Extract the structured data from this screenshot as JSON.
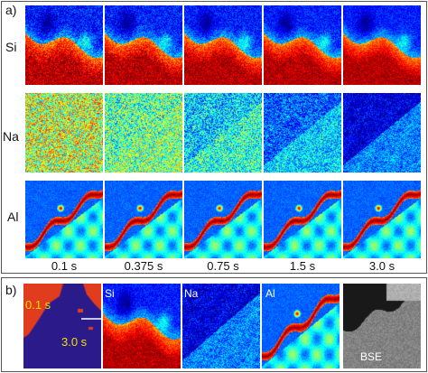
{
  "panel_a": {
    "label": "a)",
    "rows": [
      {
        "element": "Si",
        "pattern": "si"
      },
      {
        "element": "Na",
        "pattern": "na"
      },
      {
        "element": "Al",
        "pattern": "al"
      }
    ],
    "times": [
      "0.1 s",
      "0.375 s",
      "0.75 s",
      "1.5 s",
      "3.0 s"
    ]
  },
  "panel_b": {
    "label": "b)",
    "phase_map": {
      "label_top": "0.1 s",
      "label_bottom": "3.0 s",
      "color_top": "#e23c1e",
      "color_bottom": "#2a1a8a"
    },
    "maps": [
      {
        "label": "Si",
        "pattern": "si"
      },
      {
        "label": "Na",
        "pattern": "na"
      },
      {
        "label": "Al",
        "pattern": "al"
      }
    ],
    "bse_label": "BSE"
  },
  "colors": {
    "jet_low": "#00008f",
    "jet_high": "#8f0000",
    "arrow": "#ffffff",
    "label_yellow": "#f0e000"
  }
}
